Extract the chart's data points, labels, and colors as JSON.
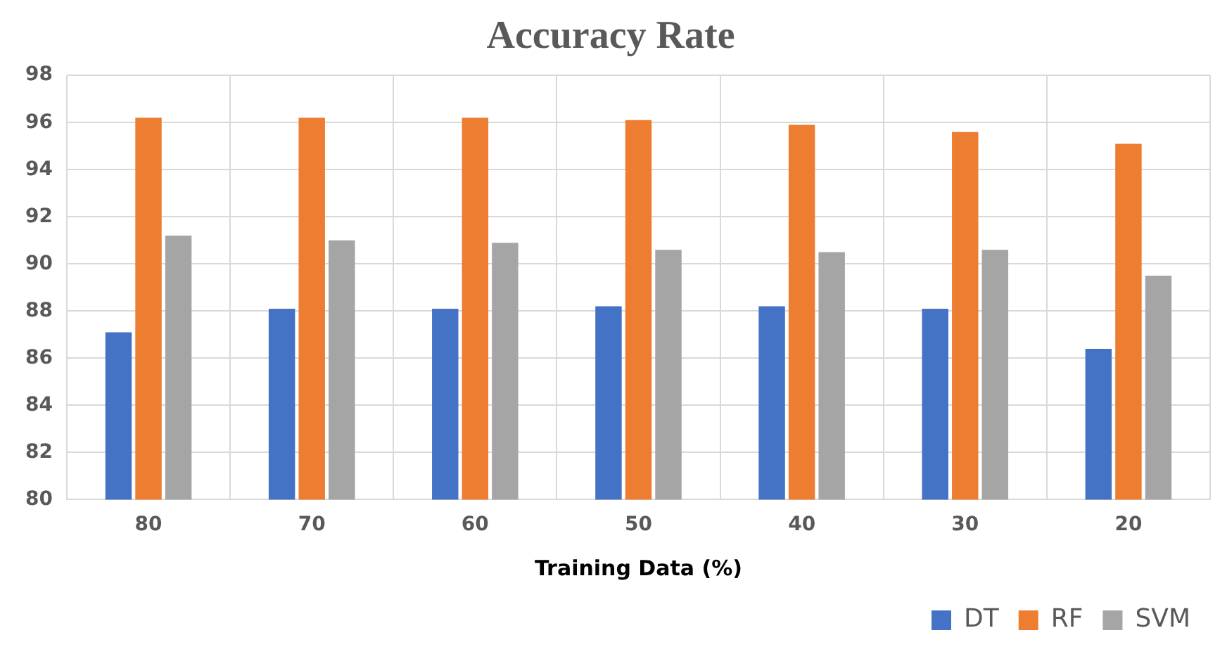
{
  "chart_data": {
    "type": "bar",
    "title": "Accuracy Rate",
    "xlabel": "Training Data (%)",
    "categories": [
      "80",
      "70",
      "60",
      "50",
      "40",
      "30",
      "20"
    ],
    "series": [
      {
        "name": "DT",
        "color": "#4472c4",
        "values": [
          87.1,
          88.1,
          88.1,
          88.2,
          88.2,
          88.1,
          86.4
        ]
      },
      {
        "name": "RF",
        "color": "#ed7d31",
        "values": [
          96.2,
          96.2,
          96.2,
          96.1,
          95.9,
          95.6,
          95.1
        ]
      },
      {
        "name": "SVM",
        "color": "#a5a5a5",
        "values": [
          91.2,
          91.0,
          90.9,
          90.6,
          90.5,
          90.6,
          89.5
        ]
      }
    ],
    "ylim": [
      80,
      98
    ],
    "yticks": [
      80,
      82,
      84,
      86,
      88,
      90,
      92,
      94,
      96,
      98
    ],
    "grid": true,
    "legend": "bottom right"
  }
}
